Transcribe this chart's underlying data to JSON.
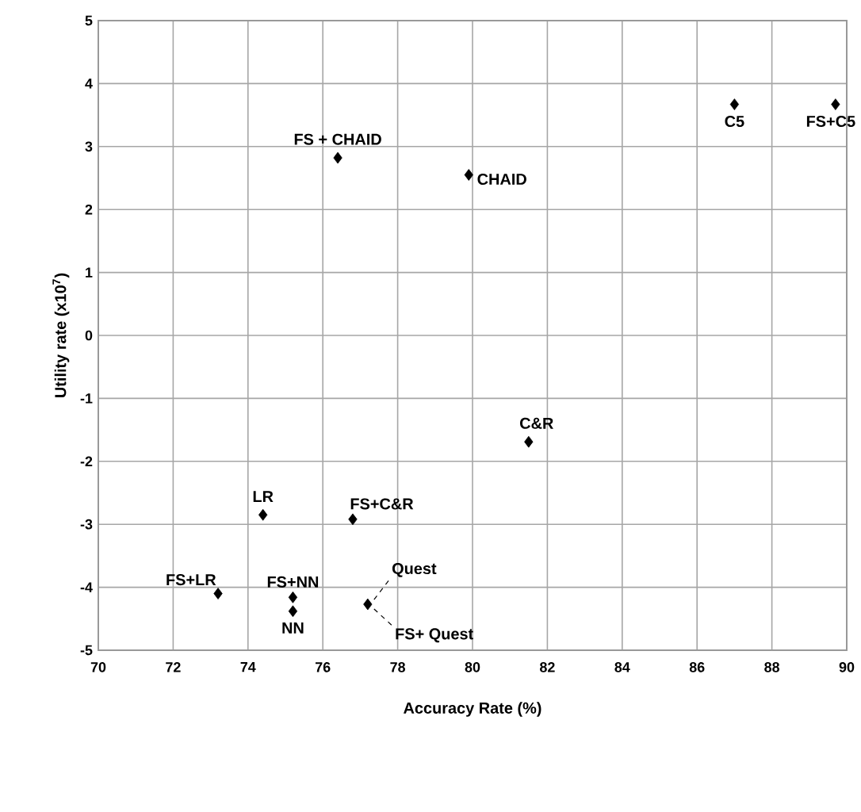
{
  "chart_data": {
    "type": "scatter",
    "xlabel": "Accuracy Rate (%)",
    "ylabel": "Utility rate (x10$^{7}$)",
    "x": [
      76.4,
      79.9,
      87.0,
      89.7,
      81.5,
      74.4,
      76.8,
      73.2,
      75.2,
      75.2,
      77.2
    ],
    "values": [
      2.82,
      2.55,
      3.67,
      3.67,
      -1.69,
      -2.85,
      -2.92,
      -4.1,
      -4.16,
      -4.38,
      -4.27
    ],
    "color": "#000000",
    "marker": "diamond",
    "grid": true,
    "xlim": [
      70,
      90
    ],
    "ylim": [
      -5,
      5
    ],
    "xticks": [
      70,
      72,
      74,
      76,
      78,
      80,
      82,
      84,
      86,
      88,
      90
    ],
    "yticks": [
      -5,
      -4,
      -3,
      -2,
      -1,
      0,
      1,
      2,
      3,
      4,
      5
    ],
    "annotations": [
      {
        "text": "FS + CHAID",
        "x": 76.4,
        "y": 2.82
      },
      {
        "text": "CHAID",
        "x": 79.9,
        "y": 2.55
      },
      {
        "text": "C5",
        "x": 87.0,
        "y": 3.67
      },
      {
        "text": "FS+C5",
        "x": 89.7,
        "y": 3.67
      },
      {
        "text": "C&R",
        "x": 81.5,
        "y": -1.69
      },
      {
        "text": "LR",
        "x": 74.4,
        "y": -2.85
      },
      {
        "text": "FS+C&R",
        "x": 76.8,
        "y": -2.92
      },
      {
        "text": "FS+LR",
        "x": 73.2,
        "y": -4.1
      },
      {
        "text": "FS+NN",
        "x": 75.2,
        "y": -4.16
      },
      {
        "text": "NN",
        "x": 75.2,
        "y": -4.38
      },
      {
        "text": "Quest",
        "x": 77.2,
        "y": -4.27
      },
      {
        "text": "FS+ Quest",
        "x": 77.2,
        "y": -4.27
      }
    ]
  }
}
